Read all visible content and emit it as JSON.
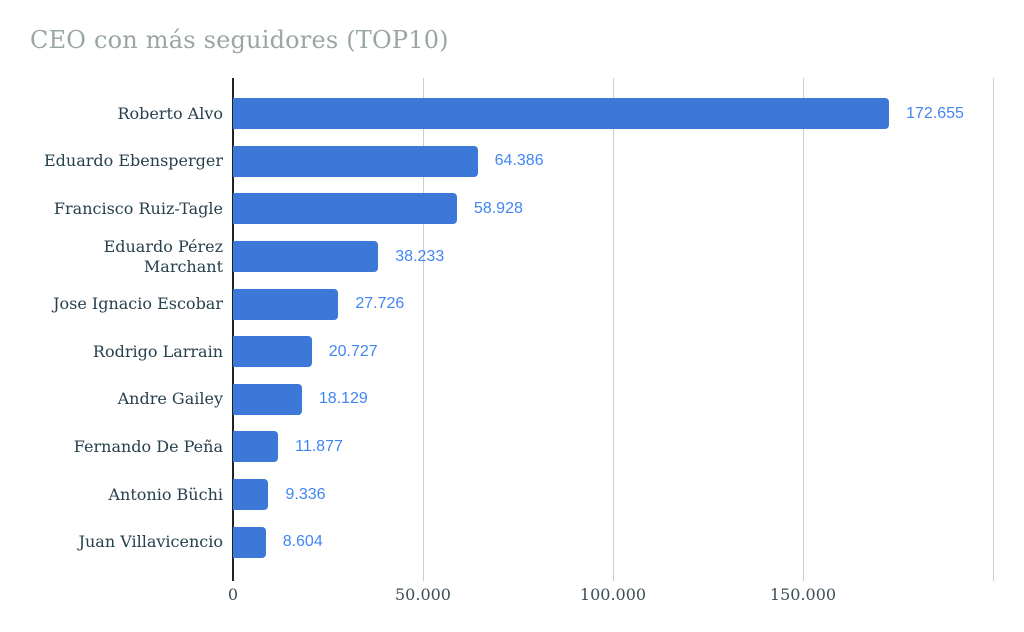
{
  "chart_data": {
    "type": "bar",
    "orientation": "horizontal",
    "title": "CEO con más seguidores (TOP10)",
    "categories": [
      "Roberto Alvo",
      "Eduardo Ebensperger",
      "Francisco Ruiz-Tagle",
      "Eduardo Pérez\nMarchant",
      "Jose Ignacio Escobar",
      "Rodrigo Larrain",
      "Andre Gailey",
      "Fernando De Peña",
      "Antonio Büchi",
      "Juan Villavicencio"
    ],
    "values": [
      172655,
      64386,
      58928,
      38233,
      27726,
      20727,
      18129,
      11877,
      9336,
      8604
    ],
    "value_labels": [
      "172.655",
      "64.386",
      "58.928",
      "38.233",
      "27.726",
      "20.727",
      "18.129",
      "11.877",
      "9.336",
      "8.604"
    ],
    "xlabel": "",
    "ylabel": "",
    "xlim": [
      0,
      200000
    ],
    "x_ticks": [
      {
        "value": 0,
        "label": "0"
      },
      {
        "value": 50000,
        "label": "50.000"
      },
      {
        "value": 100000,
        "label": "100.000"
      },
      {
        "value": 150000,
        "label": "150.000"
      },
      {
        "value": 200000,
        "label": ""
      }
    ],
    "grid": true,
    "legend": false,
    "colors": {
      "bar": "#3C78D8",
      "value_label": "#4285F4",
      "title": "#9AA5A6",
      "category_label": "#27404D",
      "tick_label": "#3D4D56",
      "gridline": "#CCCCCC",
      "axis_line": "#222222",
      "background": "#FFFFFF"
    }
  }
}
